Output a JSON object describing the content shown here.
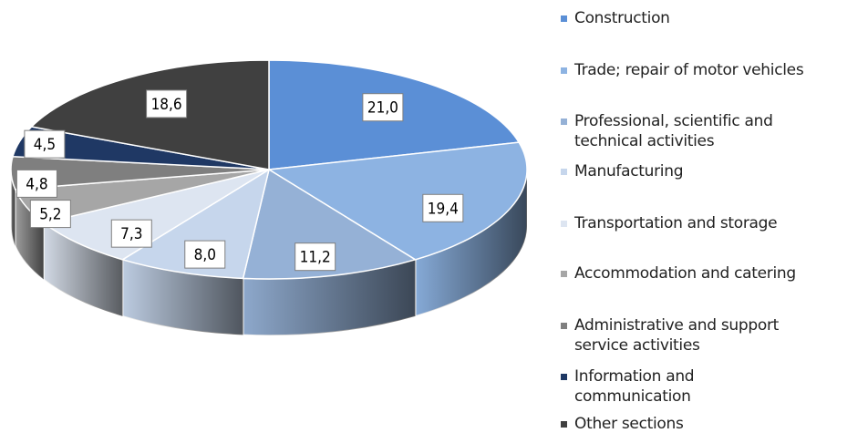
{
  "chart_data": {
    "type": "pie3d",
    "categories": [
      "Construction",
      "Trade; repair of motor vehicles",
      "Professional, scientific and technical activities",
      "Manufacturing",
      "Transportation and storage",
      "Accommodation and catering",
      "Administrative and support service activities",
      "Information and communication",
      "Other sections"
    ],
    "values": [
      21.0,
      19.4,
      11.2,
      8.0,
      7.3,
      5.2,
      4.8,
      4.5,
      18.6
    ],
    "value_labels": [
      "21,0",
      "19,4",
      "11,2",
      "8,0",
      "7,3",
      "5,2",
      "4,8",
      "4,5",
      "18,6"
    ],
    "colors": [
      "#5b8fd6",
      "#8db3e2",
      "#95b1d6",
      "#c6d6ec",
      "#dde5f1",
      "#a6a6a6",
      "#7f7f7f",
      "#1f3864",
      "#404040"
    ]
  }
}
